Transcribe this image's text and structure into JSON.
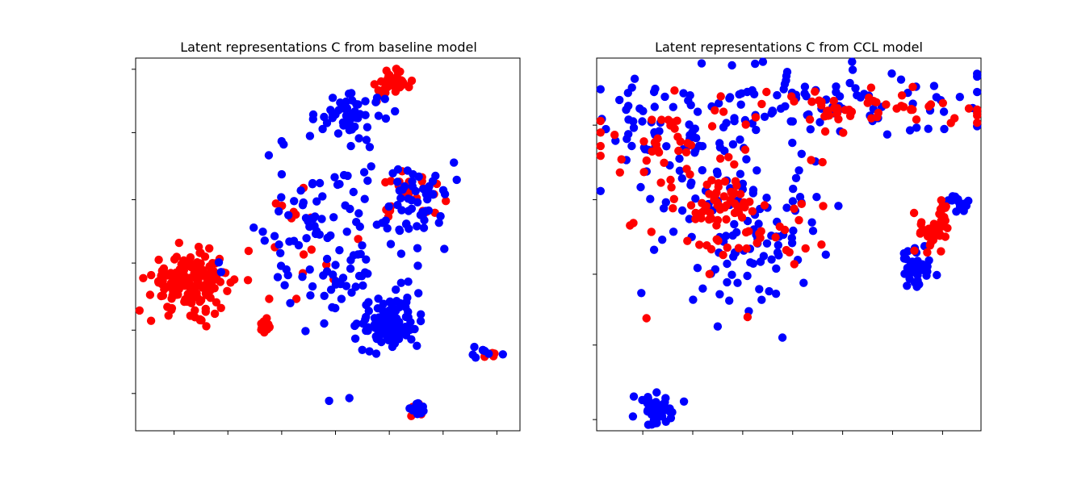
{
  "figure": {
    "background": "#ffffff"
  },
  "chart_data": [
    {
      "type": "scatter",
      "title": "Latent representations C from baseline model",
      "xlabel": "",
      "ylabel": "",
      "xlim": [
        0,
        100
      ],
      "ylim": [
        0,
        100
      ],
      "xticks": [
        10,
        24,
        38,
        52,
        66,
        80,
        94
      ],
      "yticks": [
        10,
        27,
        45,
        62,
        80,
        97
      ],
      "show_tick_labels": false,
      "grid": false,
      "legend": "none",
      "series": [
        {
          "color": "#ff0000",
          "clusters": [
            {
              "cx": 14,
              "cy": 40,
              "sx": 5.0,
              "sy": 3.8,
              "n": 180
            },
            {
              "cx": 67,
              "cy": 93,
              "sx": 2.2,
              "sy": 1.6,
              "n": 40
            },
            {
              "cx": 34,
              "cy": 28,
              "sx": 1.2,
              "sy": 1.0,
              "n": 18
            },
            {
              "cx": 73,
              "cy": 6,
              "sx": 1.0,
              "sy": 1.0,
              "n": 10
            },
            {
              "cx": 92,
              "cy": 20,
              "sx": 1.0,
              "sy": 0.6,
              "n": 6
            },
            {
              "cx": 72,
              "cy": 63,
              "sx": 4.0,
              "sy": 3.0,
              "n": 26
            },
            {
              "cx": 43,
              "cy": 48,
              "sx": 8.0,
              "sy": 12.0,
              "n": 18
            }
          ]
        },
        {
          "color": "#0000ff",
          "clusters": [
            {
              "cx": 66,
              "cy": 29,
              "sx": 3.8,
              "sy": 3.2,
              "n": 110
            },
            {
              "cx": 56,
              "cy": 85,
              "sx": 4.5,
              "sy": 2.5,
              "n": 50
            },
            {
              "cx": 73,
              "cy": 6,
              "sx": 1.4,
              "sy": 1.4,
              "n": 12
            },
            {
              "cx": 92,
              "cy": 21,
              "sx": 2.0,
              "sy": 0.8,
              "n": 8
            },
            {
              "cx": 73,
              "cy": 62,
              "sx": 4.5,
              "sy": 6.0,
              "n": 50
            },
            {
              "cx": 50,
              "cy": 50,
              "sx": 11.0,
              "sy": 14.0,
              "n": 120
            }
          ]
        }
      ]
    },
    {
      "type": "scatter",
      "title": "Latent representations C from CCL model",
      "xlabel": "",
      "ylabel": "",
      "xlim": [
        0,
        100
      ],
      "ylim": [
        0,
        100
      ],
      "xticks": [
        12,
        25,
        38,
        51,
        64,
        77,
        90
      ],
      "yticks": [
        3,
        23,
        42,
        62,
        82
      ],
      "show_tick_labels": false,
      "grid": false,
      "legend": "none",
      "series": [
        {
          "color": "#0000ff",
          "clusters": [
            {
              "cx": 16,
              "cy": 6,
              "sx": 2.6,
              "sy": 2.6,
              "n": 45
            },
            {
              "cx": 83,
              "cy": 44,
              "sx": 2.0,
              "sy": 3.0,
              "n": 40
            },
            {
              "cx": 94,
              "cy": 61,
              "sx": 1.6,
              "sy": 1.2,
              "n": 15
            },
            {
              "cx": 37,
              "cy": 58,
              "sx": 12.0,
              "sy": 13.0,
              "n": 120
            },
            {
              "cx": 55,
              "cy": 88,
              "sx": 25.0,
              "sy": 5.0,
              "n": 110
            },
            {
              "cx": 18,
              "cy": 76,
              "sx": 10.0,
              "sy": 6.0,
              "n": 40
            }
          ]
        },
        {
          "color": "#ff0000",
          "clusters": [
            {
              "cx": 33,
              "cy": 62,
              "sx": 3.0,
              "sy": 3.0,
              "n": 40
            },
            {
              "cx": 87,
              "cy": 53,
              "sx": 2.2,
              "sy": 2.2,
              "n": 35
            },
            {
              "cx": 90,
              "cy": 60,
              "sx": 1.2,
              "sy": 1.4,
              "n": 10
            },
            {
              "cx": 65,
              "cy": 86,
              "sx": 18.0,
              "sy": 3.0,
              "n": 60
            },
            {
              "cx": 20,
              "cy": 77,
              "sx": 9.0,
              "sy": 5.0,
              "n": 40
            },
            {
              "cx": 40,
              "cy": 52,
              "sx": 12.0,
              "sy": 10.0,
              "n": 50
            }
          ]
        }
      ]
    }
  ]
}
